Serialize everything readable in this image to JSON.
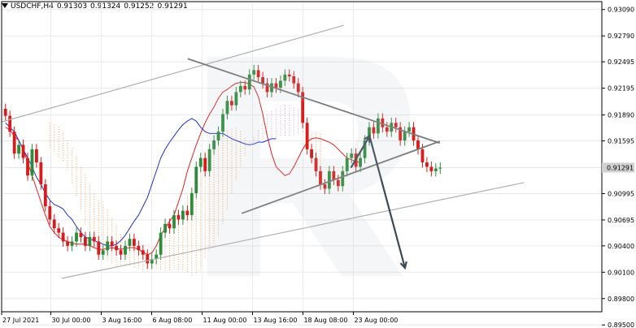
{
  "header": {
    "symbol_tf": "USDCHF,H4",
    "open": "0.91303",
    "high": "0.91324",
    "low": "0.91252",
    "close": "0.91291"
  },
  "chart_data": {
    "type": "candlestick",
    "title": "USDCHF,H4",
    "ylim": [
      0.8965,
      0.9318
    ],
    "y_tick_labels": [
      "0.93090",
      "0.92790",
      "0.92495",
      "0.92195",
      "0.91890",
      "0.91595",
      "0.91290",
      "0.90995",
      "0.90695",
      "0.90400",
      "0.90100",
      "0.89800",
      "0.89500"
    ],
    "current_price": "0.91291",
    "x_tick_labels": [
      "27 Jul 2021",
      "30 Jul 00:00",
      "3 Aug 16:00",
      "6 Aug 08:00",
      "11 Aug 00:00",
      "13 Aug 16:00",
      "18 Aug 08:00",
      "23 Aug 00:00"
    ],
    "grid": true,
    "colors": {
      "bull": "#2e8b3a",
      "bear": "#d81b1b",
      "tenkan": "#e02020",
      "kijun": "#2030d0",
      "cloud_bull": "#f2a060",
      "cloud_bear": "#c8a0d8",
      "channel": "#b0b0b0",
      "triangle": "#7a7a7a",
      "arrow": "#3a4a55",
      "price_tag": "#d0d0d0"
    },
    "series": [
      {
        "name": "close",
        "values": [
          0.9188,
          0.917,
          0.9145,
          0.9155,
          0.914,
          0.912,
          0.915,
          0.9135,
          0.911,
          0.9085,
          0.907,
          0.906,
          0.9055,
          0.9045,
          0.904,
          0.9045,
          0.9055,
          0.905,
          0.904,
          0.905,
          0.9045,
          0.903,
          0.9035,
          0.9045,
          0.904,
          0.9035,
          0.903,
          0.904,
          0.9048,
          0.904,
          0.9035,
          0.903,
          0.902,
          0.9025,
          0.903,
          0.9055,
          0.9065,
          0.906,
          0.9075,
          0.907,
          0.908,
          0.9075,
          0.91,
          0.913,
          0.914,
          0.9125,
          0.915,
          0.916,
          0.917,
          0.919,
          0.9205,
          0.92,
          0.9215,
          0.9222,
          0.9218,
          0.9235,
          0.924,
          0.9232,
          0.9225,
          0.9215,
          0.9225,
          0.922,
          0.9228,
          0.9235,
          0.9233,
          0.9225,
          0.9215,
          0.918,
          0.915,
          0.914,
          0.9125,
          0.911,
          0.9105,
          0.9125,
          0.9115,
          0.9108,
          0.9125,
          0.914,
          0.9145,
          0.913,
          0.914,
          0.916,
          0.9175,
          0.9168,
          0.9185,
          0.9175,
          0.917,
          0.918,
          0.9175,
          0.916,
          0.917,
          0.9175,
          0.916,
          0.915,
          0.9135,
          0.913,
          0.9125,
          0.9128,
          0.9129
        ]
      }
    ],
    "ichimoku": {
      "tenkan": [
        0.9175,
        0.9172,
        0.9165,
        0.916,
        0.915,
        0.9135,
        0.912,
        0.9105,
        0.909,
        0.9075,
        0.9062,
        0.9055,
        0.905,
        0.9047,
        0.9045,
        0.9043,
        0.9042,
        0.9042,
        0.9042,
        0.904,
        0.9038,
        0.9036,
        0.9036,
        0.9037,
        0.9038,
        0.9037,
        0.9036,
        0.9037,
        0.9038,
        0.9038,
        0.9036,
        0.9033,
        0.903,
        0.9032,
        0.904,
        0.9052,
        0.906,
        0.9068,
        0.9075,
        0.909,
        0.9105,
        0.9125,
        0.914,
        0.9155,
        0.9168,
        0.918,
        0.919,
        0.9198,
        0.9208,
        0.9215,
        0.9218,
        0.9222,
        0.9225,
        0.9226,
        0.9226,
        0.9224,
        0.9221,
        0.921,
        0.919,
        0.9165,
        0.9145,
        0.913,
        0.9125,
        0.912,
        0.9122,
        0.913,
        0.914,
        0.915,
        0.9158,
        0.9162,
        0.9163,
        0.9162,
        0.916,
        0.9158,
        0.9155,
        0.915,
        0.9145,
        0.914,
        0.9138,
        0.9136,
        0.9135
      ],
      "kijun": [
        0.918,
        0.9175,
        0.917,
        0.916,
        0.915,
        0.914,
        0.913,
        0.9118,
        0.911,
        0.91,
        0.9092,
        0.9087,
        0.9085,
        0.9082,
        0.9075,
        0.907,
        0.9062,
        0.9055,
        0.905,
        0.9048,
        0.9046,
        0.9044,
        0.9042,
        0.904,
        0.904,
        0.9042,
        0.9046,
        0.9052,
        0.906,
        0.9068,
        0.9075,
        0.9085,
        0.9095,
        0.911,
        0.9125,
        0.914,
        0.915,
        0.9158,
        0.9165,
        0.9172,
        0.9178,
        0.9182,
        0.9185,
        0.9182,
        0.9175,
        0.917,
        0.9168,
        0.9168,
        0.9168,
        0.9168,
        0.9165,
        0.9162,
        0.916,
        0.9158,
        0.9156,
        0.9155,
        0.9156,
        0.9158,
        0.9158,
        0.916,
        0.9162,
        0.9162
      ]
    },
    "channel_upper": [
      [
        0.0,
        0.9181
      ],
      [
        0.57,
        0.9291
      ]
    ],
    "channel_lower": [
      [
        0.1,
        0.9003
      ],
      [
        0.87,
        0.9112
      ]
    ],
    "triangle_upper": [
      [
        0.31,
        0.9253
      ],
      [
        0.73,
        0.9157
      ]
    ],
    "triangle_lower": [
      [
        0.4,
        0.9077
      ],
      [
        0.73,
        0.9159
      ]
    ],
    "forecast_path": [
      [
        0.582,
        0.9129
      ],
      [
        0.613,
        0.9165
      ],
      [
        0.672,
        0.9015
      ]
    ]
  }
}
